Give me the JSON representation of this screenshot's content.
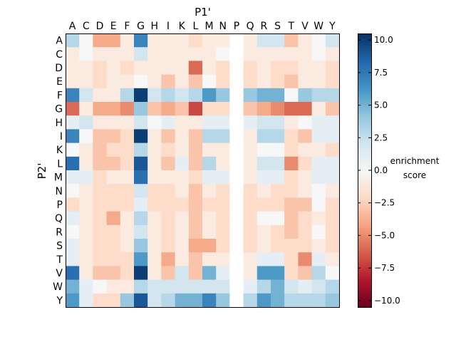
{
  "chart_data": {
    "type": "heatmap",
    "xlabel": "P1'",
    "ylabel": "P2'",
    "x_categories": [
      "A",
      "C",
      "D",
      "E",
      "F",
      "G",
      "H",
      "I",
      "K",
      "L",
      "M",
      "N",
      "P",
      "Q",
      "R",
      "S",
      "T",
      "V",
      "W",
      "Y"
    ],
    "y_categories": [
      "A",
      "C",
      "D",
      "E",
      "F",
      "G",
      "H",
      "I",
      "K",
      "L",
      "M",
      "N",
      "P",
      "Q",
      "R",
      "S",
      "T",
      "V",
      "W",
      "Y"
    ],
    "colorbar": {
      "label_line1": "enrichment",
      "label_line2": "score",
      "range": [
        -10.5,
        10.5
      ],
      "ticks": [
        10.0,
        7.5,
        5.0,
        2.5,
        0.0,
        -2.5,
        -5.0,
        -7.5,
        -10.0
      ],
      "tick_labels": [
        "10.0",
        "7.5",
        "5.0",
        "2.5",
        "0.0",
        "−2.5",
        "−5.0",
        "−7.5",
        "−10.0"
      ],
      "colormap": "RdBu (red = negative, blue = positive)"
    },
    "missing_columns": [
      "P"
    ],
    "values": [
      [
        3,
        0,
        -4,
        -4,
        -1,
        7,
        -1,
        -1,
        -1,
        -2,
        -1,
        -1,
        null,
        -1,
        2,
        2,
        -3,
        -1,
        0,
        2
      ],
      [
        -1,
        0,
        -1,
        -1,
        -1,
        2,
        -1,
        -1,
        -1,
        -1,
        -1,
        0,
        null,
        -1,
        -1,
        -1,
        -1,
        -1,
        0,
        -1
      ],
      [
        -1,
        -1,
        -2,
        -1,
        -2,
        -1,
        -1,
        -1,
        -1,
        -6,
        -1,
        -2,
        null,
        -2,
        -1,
        -2,
        -2,
        -1,
        -1,
        -2
      ],
      [
        -1,
        -1,
        -2,
        -1,
        -1,
        0,
        -1,
        -3,
        -1,
        -3,
        0,
        -2,
        null,
        -2,
        -1,
        -2,
        -3,
        -1,
        -1,
        -2
      ],
      [
        7,
        2,
        -1,
        -1,
        3,
        10,
        2,
        3,
        2,
        3,
        6,
        4,
        null,
        4,
        5,
        5,
        0,
        4,
        3,
        3
      ],
      [
        -6,
        -1,
        -4,
        -4,
        -5,
        4,
        -3,
        -4,
        -3,
        -7,
        -2,
        -2,
        null,
        -3,
        -4,
        -5,
        -6,
        -6,
        -1,
        -3
      ],
      [
        1,
        2,
        -1,
        -1,
        -1,
        2,
        0,
        1,
        -1,
        -1,
        1,
        1,
        null,
        1,
        2,
        2,
        -1,
        0,
        1,
        1
      ],
      [
        7,
        0,
        -3,
        -3,
        -2,
        10,
        -1,
        -3,
        -1,
        -3,
        3,
        3,
        null,
        -1,
        3,
        3,
        -2,
        -3,
        1,
        1
      ],
      [
        0,
        -1,
        -3,
        -2,
        -2,
        3,
        -1,
        -2,
        -1,
        -3,
        -1,
        -1,
        null,
        -1,
        0,
        0,
        -2,
        -1,
        -1,
        -2
      ],
      [
        8,
        -1,
        -3,
        -3,
        -2,
        9,
        -1,
        -3,
        1,
        -3,
        3,
        -1,
        null,
        -1,
        2,
        2,
        -5,
        -2,
        1,
        1
      ],
      [
        1,
        1,
        -2,
        -1,
        -1,
        8,
        -1,
        -1,
        -1,
        -2,
        1,
        1,
        null,
        -1,
        1,
        1,
        -2,
        -1,
        1,
        1
      ],
      [
        0,
        -1,
        -2,
        -2,
        -2,
        2,
        -2,
        -2,
        -1,
        -3,
        -1,
        -2,
        null,
        -2,
        -1,
        -2,
        -2,
        -1,
        0,
        -1
      ],
      [
        -2,
        -1,
        -2,
        -2,
        -2,
        1,
        -2,
        -2,
        -2,
        -3,
        -2,
        -2,
        null,
        -2,
        -2,
        -2,
        -3,
        -3,
        0,
        -2
      ],
      [
        1,
        -1,
        -2,
        -4,
        -1,
        3,
        -1,
        -2,
        -1,
        -3,
        -1,
        -2,
        null,
        -2,
        0,
        0,
        -3,
        -2,
        -1,
        -2
      ],
      [
        0,
        -1,
        -2,
        -2,
        -1,
        2,
        -1,
        -2,
        -1,
        -3,
        -1,
        -2,
        null,
        -2,
        -1,
        -2,
        -3,
        -2,
        0,
        -2
      ],
      [
        1,
        -1,
        -2,
        -2,
        -1,
        4,
        -1,
        -2,
        -1,
        -4,
        -4,
        -2,
        null,
        -2,
        -1,
        -2,
        -2,
        -2,
        -1,
        -2
      ],
      [
        1,
        -1,
        -2,
        -2,
        -2,
        6,
        -1,
        -4,
        -1,
        -3,
        -1,
        -1,
        null,
        -1,
        1,
        1,
        -2,
        -5,
        1,
        -1
      ],
      [
        8,
        -1,
        -3,
        -3,
        -2,
        10,
        -1,
        -3,
        2,
        -3,
        5,
        1,
        null,
        -1,
        6,
        6,
        -2,
        -3,
        3,
        0
      ],
      [
        5,
        1,
        0,
        -1,
        -1,
        3,
        2,
        2,
        2,
        2,
        2,
        2,
        null,
        1,
        3,
        5,
        2,
        1,
        2,
        3
      ],
      [
        6,
        1,
        -2,
        -2,
        4,
        9,
        2,
        3,
        5,
        5,
        7,
        4,
        null,
        3,
        6,
        5,
        3,
        3,
        3,
        4
      ]
    ]
  }
}
